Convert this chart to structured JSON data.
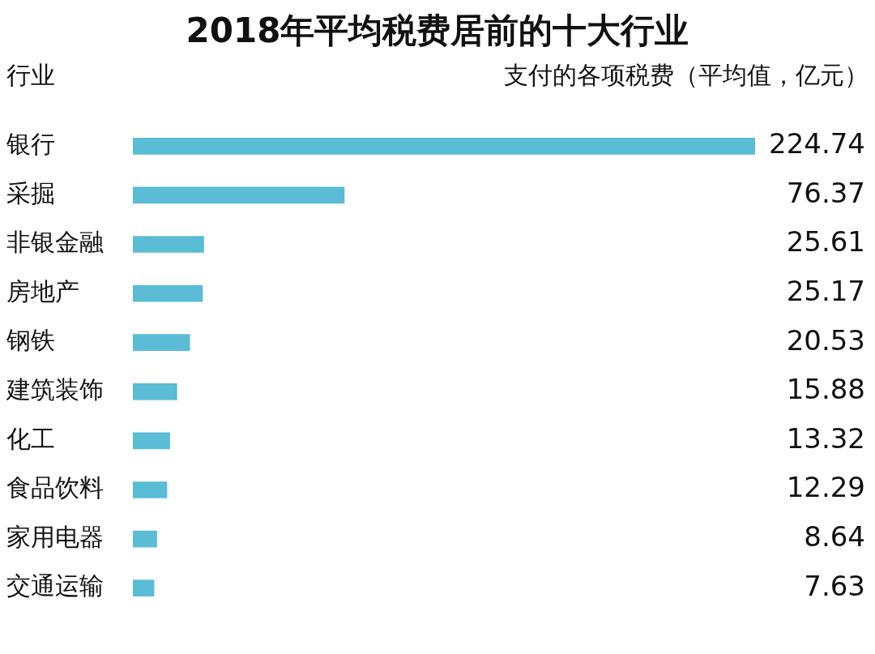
{
  "chart_data": {
    "type": "bar",
    "orientation": "horizontal",
    "title": "2018年平均税费居前的十大行业",
    "ylabel": "行业",
    "xlabel": "支付的各项税费（平均值，亿元）",
    "categories": [
      "银行",
      "采掘",
      "非银金融",
      "房地产",
      "钢铁",
      "建筑装饰",
      "化工",
      "食品饮料",
      "家用电器",
      "交通运输"
    ],
    "values": [
      224.74,
      76.37,
      25.61,
      25.17,
      20.53,
      15.88,
      13.32,
      12.29,
      8.64,
      7.63
    ],
    "color": "#5bbcd6",
    "data_labels": true
  }
}
